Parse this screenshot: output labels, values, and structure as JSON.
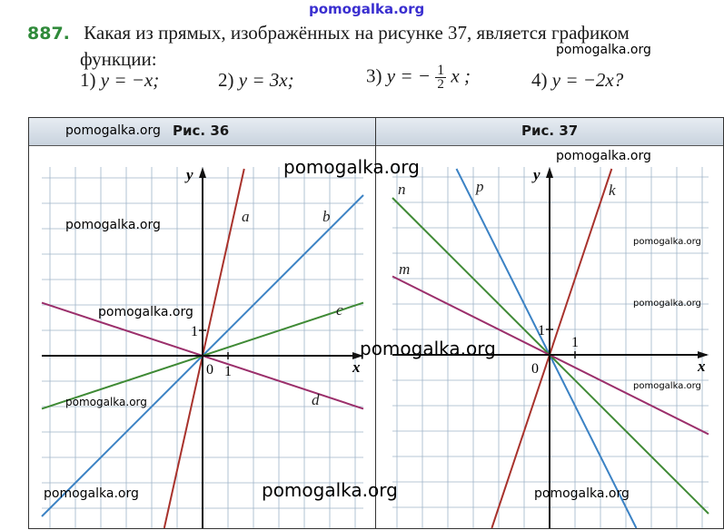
{
  "watermark": "pomogalka.org",
  "problem": {
    "number": "887.",
    "text_line1": "Какая из прямых, изображённых на рисунке 37, является графиком",
    "text_line2": "функции:",
    "options": [
      {
        "num": "1)",
        "expr": "y = −x;"
      },
      {
        "num": "2)",
        "expr": "y = 3x;"
      },
      {
        "num": "3)",
        "lhs": "y = −",
        "frac_num": "1",
        "frac_den": "2",
        "rhs": "x ;"
      },
      {
        "num": "4)",
        "expr": "y = −2x?"
      }
    ]
  },
  "fig36": {
    "title": "Рис. 36",
    "axis_x": "x",
    "axis_y": "y",
    "origin": "0",
    "tick_x": "1",
    "tick_y": "1",
    "lines": [
      {
        "name": "a",
        "slope": 4.5,
        "color": "#a8322c"
      },
      {
        "name": "b",
        "slope": 1,
        "color": "#3b82c4"
      },
      {
        "name": "c",
        "slope": 0.33,
        "color": "#3f8a35"
      },
      {
        "name": "d",
        "slope": -0.33,
        "color": "#9b2f6b"
      }
    ]
  },
  "fig37": {
    "title": "Рис. 37",
    "axis_x": "x",
    "axis_y": "y",
    "origin": "0",
    "tick_x": "1",
    "tick_y": "1",
    "lines": [
      {
        "name": "k",
        "slope": 3,
        "color": "#a8322c"
      },
      {
        "name": "p",
        "slope": -2,
        "color": "#3b82c4"
      },
      {
        "name": "n",
        "slope": -1,
        "color": "#3f8a35"
      },
      {
        "name": "m",
        "slope": -0.5,
        "color": "#9b2f6b"
      }
    ]
  }
}
